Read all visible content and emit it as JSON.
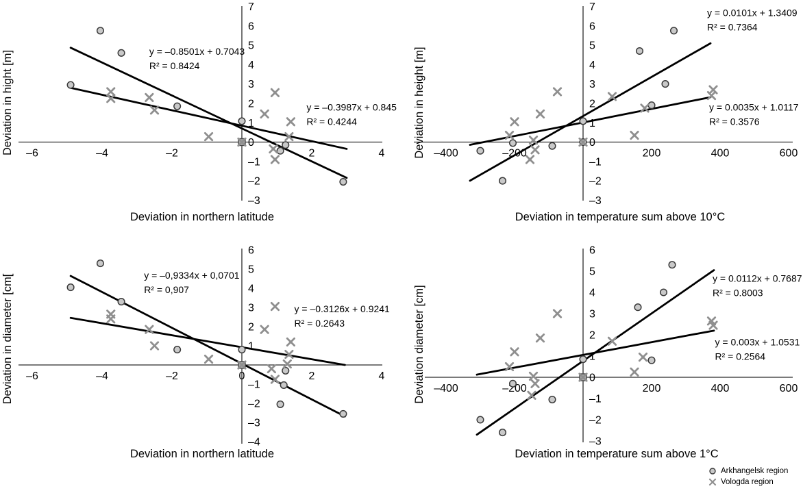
{
  "figure": {
    "background": "#ffffff",
    "colors": {
      "axis": "#2b2b2b",
      "trend_line": "#000000",
      "circle_fill": "#c9c9c9",
      "circle_stroke": "#3a3a3a",
      "x_marker": "#8f8f8f",
      "square_fill": "#ababab",
      "square_stroke": "#4a4a4a",
      "text": "#000000"
    }
  },
  "legend": {
    "position": "bottom-right",
    "items": [
      {
        "marker": "circle-marker-icon",
        "label": "Arkhangelsk region"
      },
      {
        "marker": "x-marker-icon",
        "label": "Vologda region"
      }
    ]
  },
  "chart_data": [
    {
      "id": "tl",
      "type": "scatter",
      "xlabel": "Deviation in northern latitude",
      "ylabel": "Deviation in hight [m]",
      "xlim": [
        -6,
        4
      ],
      "ylim": [
        -3,
        7
      ],
      "xticks": [
        -6,
        -4,
        -2,
        2,
        4
      ],
      "yticks": [
        7,
        6,
        5,
        4,
        3,
        2,
        1,
        0,
        -1,
        -2,
        -3
      ],
      "origin_marker": "square",
      "series": [
        {
          "name": "Arkhangelsk region",
          "marker": "circle",
          "points": [
            [
              -4.9,
              2.95
            ],
            [
              -4.05,
              5.75
            ],
            [
              -3.45,
              4.6
            ],
            [
              -1.85,
              1.85
            ],
            [
              0,
              1.08
            ],
            [
              1.25,
              -0.15
            ],
            [
              1.1,
              -0.45
            ],
            [
              2.9,
              -2.05
            ]
          ]
        },
        {
          "name": "Vologda region",
          "marker": "x",
          "points": [
            [
              -3.75,
              2.6
            ],
            [
              -3.75,
              2.25
            ],
            [
              -2.65,
              2.3
            ],
            [
              -2.5,
              1.65
            ],
            [
              -0.95,
              0.28
            ],
            [
              0,
              0
            ],
            [
              0.65,
              1.45
            ],
            [
              0.95,
              2.55
            ],
            [
              1.4,
              1.05
            ],
            [
              1.35,
              0.28
            ],
            [
              0.9,
              -0.35
            ],
            [
              0.95,
              -0.9
            ]
          ]
        }
      ],
      "trendlines": [
        {
          "series": "Arkhangelsk region",
          "equation": "y = –0.8501x + 0.7043",
          "r2": "R² = 0.8424",
          "slope": -0.8501,
          "intercept": 0.7043,
          "x_range": [
            -4.9,
            3.0
          ],
          "label_anchor": [
            -2.65,
            4.5
          ]
        },
        {
          "series": "Vologda region",
          "equation": "y = –0.3987x + 0.845",
          "r2": "R² = 0.4244",
          "slope": -0.3987,
          "intercept": 0.845,
          "x_range": [
            -4.9,
            3.0
          ],
          "label_anchor": [
            1.85,
            1.62
          ]
        }
      ]
    },
    {
      "id": "tr",
      "type": "scatter",
      "xlabel": "Deviation in temperature sum above 10°C",
      "ylabel": "Deviation in height [m]",
      "xlim": [
        -400,
        600
      ],
      "ylim": [
        -3,
        7
      ],
      "xticks": [
        -400,
        -200,
        200,
        400,
        600
      ],
      "yticks": [
        7,
        6,
        5,
        4,
        3,
        2,
        1,
        0,
        -1,
        -2,
        -3
      ],
      "origin_marker": null,
      "series": [
        {
          "name": "Arkhangelsk region",
          "marker": "circle",
          "points": [
            [
              -300,
              -0.45
            ],
            [
              -235,
              -2.0
            ],
            [
              -205,
              -0.05
            ],
            [
              -90,
              -0.2
            ],
            [
              0,
              0
            ],
            [
              0,
              1.08
            ],
            [
              165,
              4.7
            ],
            [
              200,
              1.9
            ],
            [
              240,
              3.0
            ],
            [
              265,
              5.75
            ]
          ]
        },
        {
          "name": "Vologda region",
          "marker": "x",
          "points": [
            [
              -215,
              0.35
            ],
            [
              -200,
              1.05
            ],
            [
              -155,
              -0.9
            ],
            [
              -145,
              0.1
            ],
            [
              -140,
              -0.4
            ],
            [
              -125,
              1.45
            ],
            [
              -75,
              2.6
            ],
            [
              0,
              0
            ],
            [
              85,
              2.35
            ],
            [
              150,
              0.35
            ],
            [
              180,
              1.75
            ],
            [
              375,
              2.4
            ],
            [
              380,
              2.7
            ]
          ]
        }
      ],
      "trendlines": [
        {
          "series": "Arkhangelsk region",
          "equation": "y = 0.0101x + 1.3409",
          "r2": "R² = 0.7364",
          "slope": 0.0101,
          "intercept": 1.3409,
          "x_range": [
            -330,
            372
          ],
          "label_anchor": [
            362,
            6.5
          ]
        },
        {
          "series": "Vologda region",
          "equation": "y = 0.0035x + 1.0117",
          "r2": "R² = 0.3576",
          "slope": 0.0035,
          "intercept": 1.0117,
          "x_range": [
            -330,
            372
          ],
          "label_anchor": [
            368,
            1.62
          ]
        }
      ]
    },
    {
      "id": "bl",
      "type": "scatter",
      "xlabel": "Deviation in northern latitude",
      "ylabel": "Deviation in diameter [cm[",
      "xlim": [
        -6,
        4
      ],
      "ylim": [
        -4,
        6
      ],
      "xticks": [
        -6,
        -4,
        -2,
        0,
        2,
        4
      ],
      "yticks": [
        6,
        5,
        4,
        3,
        2,
        1,
        -1,
        -2,
        -3,
        -4
      ],
      "origin_marker": "square",
      "series": [
        {
          "name": "Arkhangelsk region",
          "marker": "circle",
          "points": [
            [
              -4.9,
              4.05
            ],
            [
              -4.05,
              5.3
            ],
            [
              -3.45,
              3.3
            ],
            [
              -1.85,
              0.8
            ],
            [
              0,
              0.8
            ],
            [
              1.25,
              -0.3
            ],
            [
              1.2,
              -1.05
            ],
            [
              1.1,
              -2.05
            ],
            [
              2.9,
              -2.55
            ]
          ]
        },
        {
          "name": "Vologda region",
          "marker": "x",
          "points": [
            [
              -3.75,
              2.65
            ],
            [
              -3.75,
              2.4
            ],
            [
              -2.65,
              1.85
            ],
            [
              -2.5,
              1.0
            ],
            [
              -0.95,
              0.3
            ],
            [
              0,
              0
            ],
            [
              0.65,
              1.85
            ],
            [
              0.95,
              3.05
            ],
            [
              1.4,
              1.2
            ],
            [
              1.35,
              0.55
            ],
            [
              1.3,
              0.05
            ],
            [
              0.85,
              -0.2
            ],
            [
              0.95,
              -0.75
            ]
          ]
        }
      ],
      "trendlines": [
        {
          "series": "Arkhangelsk region",
          "equation": "y = –0,9334x + 0,0701",
          "r2": "R² = 0,907",
          "slope": -0.9334,
          "intercept": 0.0701,
          "x_range": [
            -4.9,
            2.95
          ],
          "label_anchor": [
            -2.8,
            4.5
          ]
        },
        {
          "series": "Vologda region",
          "equation": "y = –0.3126x + 0.9241",
          "r2": "R² = 0.2643",
          "slope": -0.3126,
          "intercept": 0.9241,
          "x_range": [
            -4.9,
            2.95
          ],
          "label_anchor": [
            1.5,
            2.75
          ]
        }
      ]
    },
    {
      "id": "br",
      "type": "scatter",
      "xlabel": "Deviation in temperature sum above 1°C",
      "ylabel": "Deviation diameter [cm]",
      "xlim": [
        -400,
        600
      ],
      "ylim": [
        -3,
        6
      ],
      "xticks": [
        -400,
        -200,
        200,
        400,
        600
      ],
      "yticks": [
        6,
        5,
        4,
        3,
        2,
        1,
        0,
        -1,
        -2,
        -3
      ],
      "origin_marker": "square",
      "series": [
        {
          "name": "Arkhangelsk region",
          "marker": "circle",
          "points": [
            [
              -300,
              -2.0
            ],
            [
              -235,
              -2.6
            ],
            [
              -205,
              -0.3
            ],
            [
              -90,
              -1.05
            ],
            [
              0,
              0.85
            ],
            [
              160,
              3.3
            ],
            [
              200,
              0.8
            ],
            [
              235,
              4.0
            ],
            [
              260,
              5.3
            ]
          ]
        },
        {
          "name": "Vologda region",
          "marker": "x",
          "points": [
            [
              -215,
              0.5
            ],
            [
              -200,
              1.2
            ],
            [
              -150,
              -0.85
            ],
            [
              -145,
              0.05
            ],
            [
              -140,
              -0.3
            ],
            [
              -125,
              1.85
            ],
            [
              -75,
              3.0
            ],
            [
              0,
              0
            ],
            [
              85,
              1.7
            ],
            [
              150,
              0.25
            ],
            [
              175,
              0.95
            ],
            [
              375,
              2.65
            ],
            [
              380,
              2.45
            ]
          ]
        }
      ],
      "trendlines": [
        {
          "series": "Arkhangelsk region",
          "equation": "y = 0.0112x + 0.7687",
          "r2": "R² = 0.8003",
          "slope": 0.0112,
          "intercept": 0.7687,
          "x_range": [
            -310,
            382
          ],
          "label_anchor": [
            378,
            4.5
          ]
        },
        {
          "series": "Vologda region",
          "equation": "y = 0.003x + 1.0531",
          "r2": "R² = 0.2564",
          "slope": 0.003,
          "intercept": 1.0531,
          "x_range": [
            -310,
            382
          ],
          "label_anchor": [
            385,
            1.5
          ]
        }
      ]
    }
  ]
}
